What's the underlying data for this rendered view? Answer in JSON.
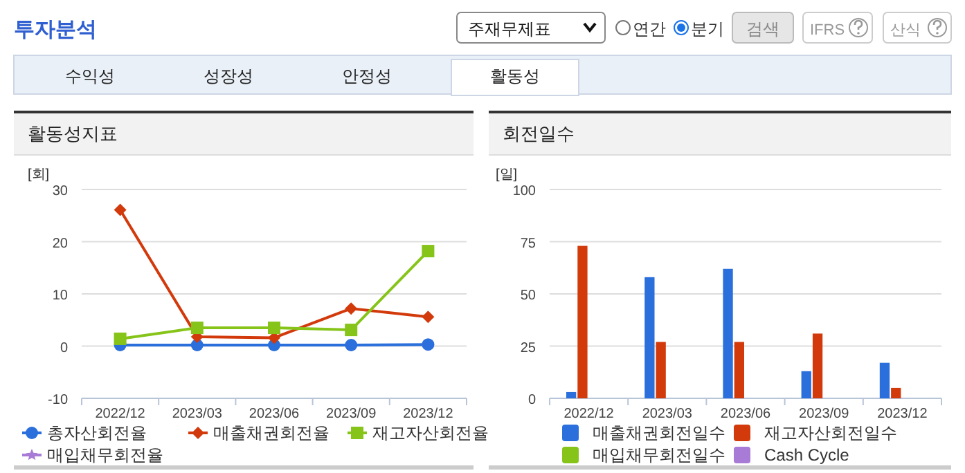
{
  "chart_data": [
    {
      "type": "other",
      "annotations": [
        "투자분석",
        "주재무제표",
        "연간",
        "분기",
        "검색",
        "IFRS",
        "산식",
        "수익성",
        "성장성",
        "안정성",
        "활동성"
      ]
    },
    {
      "type": "line",
      "title": "활동성지표",
      "ylabel": "[회]",
      "categories": [
        "2022/12",
        "2023/03",
        "2023/06",
        "2023/09",
        "2023/12"
      ],
      "ylim": [
        -10,
        30
      ],
      "yticks": [
        -10,
        0,
        10,
        20,
        30
      ],
      "grid": "y",
      "legend": "bottom",
      "line_style": "solid",
      "series": [
        {
          "name": "총자산회전율",
          "color": "#2a6fdb",
          "marker": "circle",
          "values": [
            0.2,
            0.2,
            0.2,
            0.2,
            0.3
          ]
        },
        {
          "name": "매출채권회전율",
          "color": "#d23a0c",
          "marker": "diamond",
          "values": [
            26.1,
            1.8,
            1.6,
            7.2,
            5.6
          ]
        },
        {
          "name": "재고자산회전율",
          "color": "#86c41a",
          "marker": "square",
          "values": [
            1.4,
            3.5,
            3.5,
            3.1,
            18.2
          ]
        },
        {
          "name": "매입채무회전율",
          "color": "#a77bd6",
          "marker": "star",
          "values": [
            null,
            null,
            null,
            null,
            null
          ]
        }
      ]
    },
    {
      "type": "bar",
      "title": "회전일수",
      "ylabel": "[일]",
      "categories": [
        "2022/12",
        "2023/03",
        "2023/06",
        "2023/09",
        "2023/12"
      ],
      "ylim": [
        0,
        100
      ],
      "yticks": [
        0,
        25,
        50,
        75,
        100
      ],
      "grid": "y",
      "legend": "bottom",
      "series": [
        {
          "name": "매출채권회전일수",
          "color": "#2a6fdb",
          "values": [
            3,
            58,
            62,
            13,
            17
          ]
        },
        {
          "name": "재고자산회전일수",
          "color": "#d23a0c",
          "values": [
            73,
            27,
            27,
            31,
            5
          ]
        },
        {
          "name": "매입채무회전일수",
          "color": "#86c41a",
          "values": [
            null,
            null,
            null,
            null,
            null
          ]
        },
        {
          "name": "Cash Cycle",
          "color": "#a77bd6",
          "values": [
            null,
            null,
            null,
            null,
            null
          ]
        }
      ]
    }
  ]
}
